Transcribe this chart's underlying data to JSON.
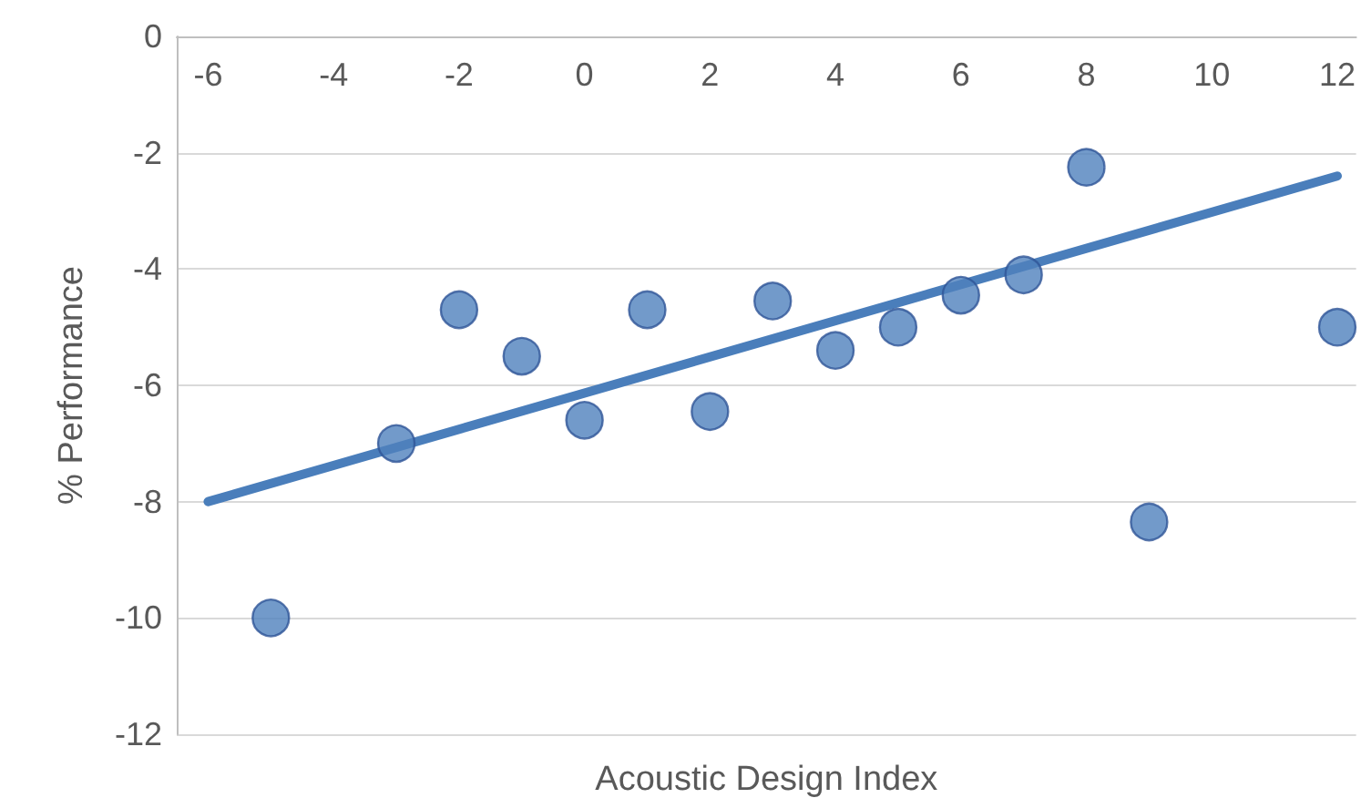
{
  "chart_data": {
    "type": "scatter",
    "xlabel": "Acoustic Design Index",
    "ylabel": "% Performance",
    "x": [
      -5,
      -3,
      -2,
      -1,
      0,
      1,
      2,
      3,
      4,
      5,
      6,
      7,
      8,
      9,
      12
    ],
    "series": [
      {
        "color": "#4f81bd",
        "marker": "circle",
        "values": [
          -10,
          -7.0,
          -4.7,
          -5.5,
          -6.6,
          -4.7,
          -6.45,
          -4.55,
          -5.4,
          -5.0,
          -4.45,
          -4.1,
          -2.25,
          -8.35,
          -5.0
        ]
      },
      {
        "type": "line",
        "marker": "none",
        "color": "#4a7ebb",
        "x": [
          -6,
          12
        ],
        "values": [
          -8.0,
          -2.4
        ]
      }
    ],
    "xlim": [
      -6.5,
      12.3
    ],
    "xticks": [
      -6,
      -4,
      -2,
      0,
      2,
      4,
      6,
      8,
      10,
      12
    ],
    "ylim": [
      -12,
      0
    ],
    "yticks": [
      -12,
      -10,
      -8,
      -6,
      -4,
      -2,
      0
    ],
    "grid": "y",
    "line_style": "solid"
  }
}
